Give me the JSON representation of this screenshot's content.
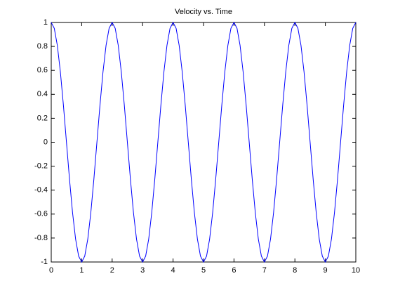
{
  "chart_data": {
    "type": "line",
    "title": "Velocity vs. Time",
    "x": [
      0,
      0.1,
      0.2,
      0.3,
      0.4,
      0.5,
      0.6,
      0.7,
      0.8,
      0.9,
      1,
      1.1,
      1.2,
      1.3,
      1.4,
      1.5,
      1.6,
      1.7,
      1.8,
      1.9,
      2,
      2.1,
      2.2,
      2.3,
      2.4,
      2.5,
      2.6,
      2.7,
      2.8,
      2.9,
      3,
      3.1,
      3.2,
      3.3,
      3.4,
      3.5,
      3.6,
      3.7,
      3.8,
      3.9,
      4,
      4.1,
      4.2,
      4.3,
      4.4,
      4.5,
      4.6,
      4.7,
      4.8,
      4.9,
      5,
      5.1,
      5.2,
      5.3,
      5.4,
      5.5,
      5.6,
      5.7,
      5.8,
      5.9,
      6,
      6.1,
      6.2,
      6.3,
      6.4,
      6.5,
      6.6,
      6.7,
      6.8,
      6.9,
      7,
      7.1,
      7.2,
      7.3,
      7.4,
      7.5,
      7.6,
      7.7,
      7.8,
      7.9,
      8,
      8.1,
      8.2,
      8.3,
      8.4,
      8.5,
      8.6,
      8.7,
      8.8,
      8.9,
      9,
      9.1,
      9.2,
      9.3,
      9.4,
      9.5,
      9.6,
      9.7,
      9.8,
      9.9,
      10
    ],
    "values": [
      1,
      0.951,
      0.809,
      0.588,
      0.309,
      0,
      -0.309,
      -0.588,
      -0.809,
      -0.951,
      -1,
      -0.951,
      -0.809,
      -0.588,
      -0.309,
      0,
      0.309,
      0.588,
      0.809,
      0.951,
      1,
      0.951,
      0.809,
      0.588,
      0.309,
      0,
      -0.309,
      -0.588,
      -0.809,
      -0.951,
      -1,
      -0.951,
      -0.809,
      -0.588,
      -0.309,
      0,
      0.309,
      0.588,
      0.809,
      0.951,
      1,
      0.951,
      0.809,
      0.588,
      0.309,
      0,
      -0.309,
      -0.588,
      -0.809,
      -0.951,
      -1,
      -0.951,
      -0.809,
      -0.588,
      -0.309,
      0,
      0.309,
      0.588,
      0.809,
      0.951,
      1,
      0.951,
      0.809,
      0.588,
      0.309,
      0,
      -0.309,
      -0.588,
      -0.809,
      -0.951,
      -1,
      -0.951,
      -0.809,
      -0.588,
      -0.309,
      0,
      0.309,
      0.588,
      0.809,
      0.951,
      1,
      0.951,
      0.809,
      0.588,
      0.309,
      0,
      -0.309,
      -0.588,
      -0.809,
      -0.951,
      -1,
      -0.951,
      -0.809,
      -0.588,
      -0.309,
      0,
      0.309,
      0.588,
      0.809,
      0.951,
      1
    ],
    "color": "#0000ff",
    "xlim": [
      0,
      10
    ],
    "xticks": [
      0,
      1,
      2,
      3,
      4,
      5,
      6,
      7,
      8,
      9,
      10
    ],
    "ylim": [
      -1,
      1
    ],
    "yticks": [
      -1,
      -0.8,
      -0.6,
      -0.4,
      -0.2,
      0,
      0.2,
      0.4,
      0.6,
      0.8,
      1
    ]
  }
}
